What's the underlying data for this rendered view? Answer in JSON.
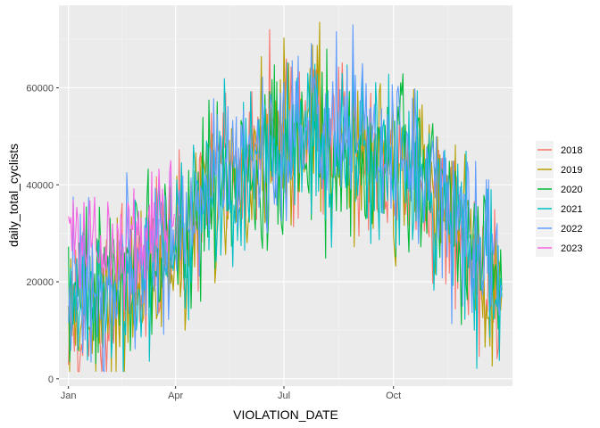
{
  "chart_data": {
    "type": "line",
    "xlabel": "VIOLATION_DATE",
    "ylabel": "daily_total_cyclists",
    "x_ticks": [
      {
        "label": "Jan",
        "day": 1
      },
      {
        "label": "Apr",
        "day": 91
      },
      {
        "label": "Jul",
        "day": 182
      },
      {
        "label": "Oct",
        "day": 274
      }
    ],
    "y_ticks": [
      0,
      20000,
      40000,
      60000
    ],
    "xlim": [
      -7,
      374
    ],
    "ylim": [
      -1500,
      77000
    ],
    "grid": true,
    "legend_position": "right",
    "series": [
      {
        "name": "2018",
        "color": "#F8766D",
        "days_range": [
          1,
          365
        ],
        "anchors_day": [
          1,
          30,
          60,
          91,
          120,
          150,
          182,
          210,
          240,
          274,
          300,
          330,
          365
        ],
        "anchors_value": [
          11000,
          13000,
          20000,
          28000,
          42000,
          48000,
          50000,
          51000,
          49000,
          45000,
          38000,
          28000,
          15000
        ],
        "amplitude": 11000,
        "peak_value": 72000
      },
      {
        "name": "2019",
        "color": "#B79F00",
        "days_range": [
          1,
          365
        ],
        "anchors_day": [
          1,
          30,
          60,
          91,
          120,
          150,
          182,
          210,
          240,
          274,
          300,
          330,
          365
        ],
        "anchors_value": [
          14000,
          16000,
          19000,
          26000,
          35000,
          44000,
          52000,
          50000,
          47000,
          43000,
          44000,
          32000,
          16000
        ],
        "amplitude": 11000,
        "peak_value": 73500
      },
      {
        "name": "2020",
        "color": "#00BA38",
        "days_range": [
          1,
          365
        ],
        "anchors_day": [
          1,
          30,
          60,
          91,
          120,
          150,
          182,
          210,
          240,
          274,
          300,
          330,
          365
        ],
        "anchors_value": [
          17000,
          18000,
          24000,
          28000,
          38000,
          42000,
          46000,
          47000,
          45000,
          44000,
          42000,
          30000,
          18000
        ],
        "amplitude": 11000,
        "peak_value": 68000
      },
      {
        "name": "2021",
        "color": "#00BFC4",
        "days_range": [
          1,
          365
        ],
        "anchors_day": [
          1,
          30,
          60,
          91,
          120,
          150,
          182,
          210,
          240,
          274,
          300,
          330,
          365
        ],
        "anchors_value": [
          15000,
          16000,
          22000,
          30000,
          38000,
          43000,
          46000,
          48000,
          47000,
          45000,
          40000,
          30000,
          18000
        ],
        "amplitude": 11000,
        "peak_value": 62000
      },
      {
        "name": "2022",
        "color": "#619CFF",
        "days_range": [
          1,
          365
        ],
        "anchors_day": [
          1,
          30,
          60,
          91,
          120,
          150,
          182,
          210,
          240,
          274,
          300,
          330,
          365
        ],
        "anchors_value": [
          16000,
          17000,
          22000,
          30000,
          40000,
          45000,
          47000,
          50000,
          52000,
          50000,
          42000,
          30000,
          22000
        ],
        "amplitude": 11000,
        "peak_value": 73000
      },
      {
        "name": "2023",
        "color": "#F564E3",
        "days_range": [
          1,
          90
        ],
        "anchors_day": [
          1,
          20,
          45,
          70,
          90
        ],
        "anchors_value": [
          30000,
          27000,
          25000,
          30000,
          37000
        ],
        "amplitude": 8000,
        "peak_value": 45000
      }
    ]
  }
}
